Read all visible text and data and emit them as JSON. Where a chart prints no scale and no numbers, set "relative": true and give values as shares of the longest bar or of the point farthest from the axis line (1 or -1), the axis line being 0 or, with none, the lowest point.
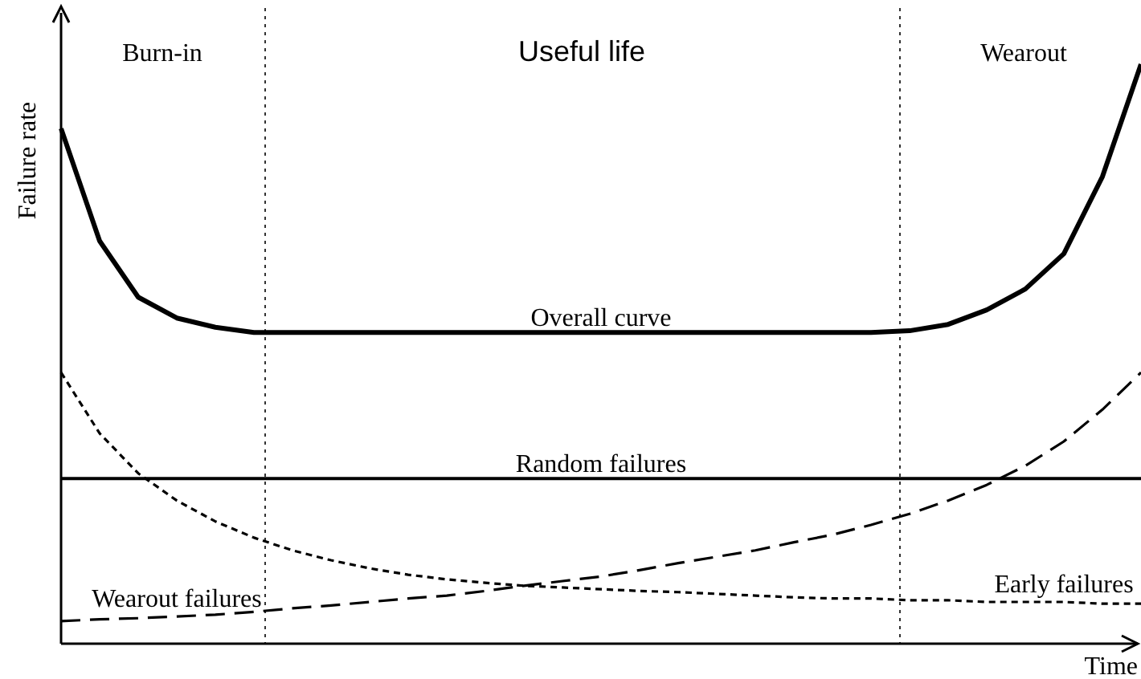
{
  "chart_data": {
    "type": "line",
    "relative": true,
    "xlabel": "Time",
    "ylabel": "Failure rate",
    "categories": [
      null,
      null,
      null,
      null,
      null,
      null,
      null,
      null,
      null,
      null,
      null,
      null,
      null,
      null,
      null,
      null,
      null,
      null,
      null,
      null,
      null,
      null,
      null,
      null,
      null,
      null,
      null,
      null,
      null
    ],
    "series": [
      {
        "name": "Overall curve",
        "color": "#000000",
        "line_style": "solid",
        "values": [
          0.889,
          0.695,
          0.598,
          0.562,
          0.546,
          0.537,
          0.537,
          0.537,
          0.537,
          0.537,
          0.537,
          0.537,
          0.537,
          0.537,
          0.537,
          0.537,
          0.537,
          0.537,
          0.537,
          0.537,
          0.537,
          0.537,
          0.54,
          0.551,
          0.576,
          0.612,
          0.673,
          0.806,
          1.0
        ]
      },
      {
        "name": "Random failures",
        "color": "#000000",
        "line_style": "solid",
        "values": [
          0.285,
          0.285,
          0.285,
          0.285,
          0.285,
          0.285,
          0.285,
          0.285,
          0.285,
          0.285,
          0.285,
          0.285,
          0.285,
          0.285,
          0.285,
          0.285,
          0.285,
          0.285,
          0.285,
          0.285,
          0.285,
          0.285,
          0.285,
          0.285,
          0.285,
          0.285,
          0.285,
          0.285,
          0.285
        ]
      },
      {
        "name": "Early failures",
        "color": "#000000",
        "line_style": "dotted",
        "values": [
          0.468,
          0.363,
          0.294,
          0.247,
          0.211,
          0.183,
          0.161,
          0.144,
          0.13,
          0.119,
          0.111,
          0.105,
          0.1,
          0.097,
          0.094,
          0.091,
          0.089,
          0.086,
          0.083,
          0.08,
          0.078,
          0.078,
          0.075,
          0.075,
          0.072,
          0.072,
          0.072,
          0.069,
          0.069
        ]
      },
      {
        "name": "Wearout failures",
        "color": "#000000",
        "line_style": "dashed",
        "values": [
          0.039,
          0.042,
          0.044,
          0.047,
          0.05,
          0.055,
          0.061,
          0.066,
          0.072,
          0.078,
          0.083,
          0.091,
          0.1,
          0.108,
          0.116,
          0.127,
          0.139,
          0.15,
          0.161,
          0.175,
          0.188,
          0.205,
          0.224,
          0.247,
          0.274,
          0.307,
          0.349,
          0.404,
          0.468
        ]
      }
    ],
    "annotations": [
      "Burn-in",
      "Useful life",
      "Wearout"
    ]
  }
}
